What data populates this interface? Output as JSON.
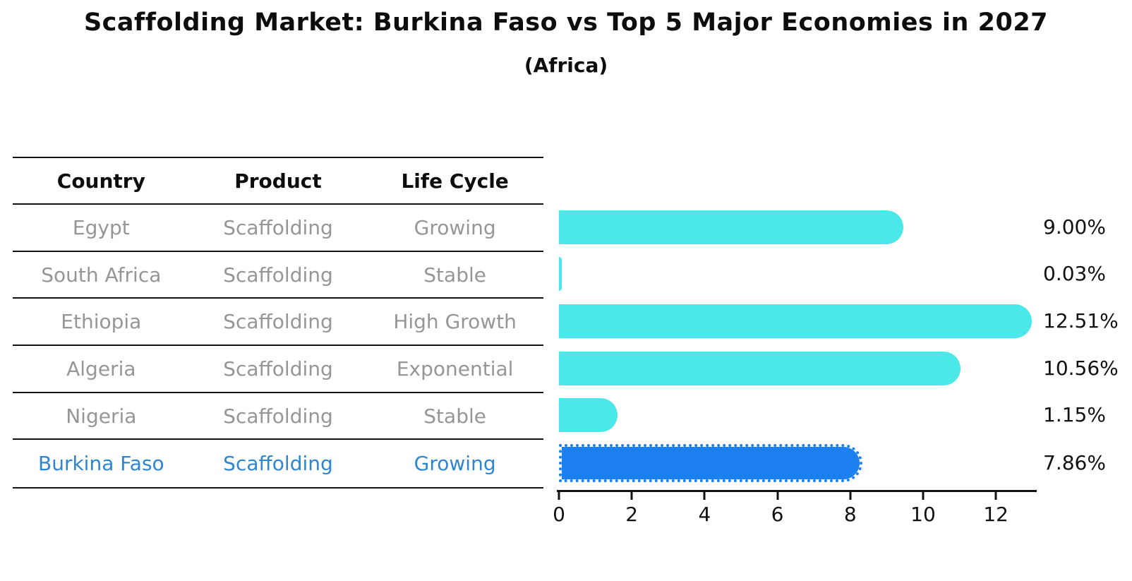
{
  "title": "Scaffolding Market: Burkina Faso vs Top 5 Major Economies in 2027",
  "subtitle": "(Africa)",
  "table": {
    "headers": [
      "Country",
      "Product",
      "Life Cycle"
    ],
    "rows": [
      {
        "country": "Egypt",
        "product": "Scaffolding",
        "life_cycle": "Growing",
        "highlighted": false
      },
      {
        "country": "South Africa",
        "product": "Scaffolding",
        "life_cycle": "Stable",
        "highlighted": false
      },
      {
        "country": "Ethiopia",
        "product": "Scaffolding",
        "life_cycle": "High Growth",
        "highlighted": false
      },
      {
        "country": "Algeria",
        "product": "Scaffolding",
        "life_cycle": "Exponential",
        "highlighted": false
      },
      {
        "country": "Nigeria",
        "product": "Scaffolding",
        "life_cycle": "Stable",
        "highlighted": false
      },
      {
        "country": "Burkina Faso",
        "product": "Scaffolding",
        "life_cycle": "Growing",
        "highlighted": true
      }
    ]
  },
  "chart_data": {
    "type": "bar",
    "orientation": "horizontal",
    "title": "Scaffolding Market: Burkina Faso vs Top 5 Major Economies in 2027",
    "subtitle": "(Africa)",
    "categories": [
      "Egypt",
      "South Africa",
      "Ethiopia",
      "Algeria",
      "Nigeria",
      "Burkina Faso"
    ],
    "values": [
      9.0,
      0.03,
      12.51,
      10.56,
      1.15,
      7.86
    ],
    "value_labels": [
      "9.00%",
      "0.03%",
      "12.51%",
      "10.56%",
      "1.15%",
      "7.86%"
    ],
    "x_ticks": [
      "0",
      "2",
      "4",
      "6",
      "8",
      "10",
      "12"
    ],
    "xlim": [
      0,
      13.1
    ],
    "grid": false,
    "legend": "none",
    "bar_color": "#4BE8E9",
    "highlight_bar_color": "#1C80F0",
    "highlight_index": 5,
    "highlight_style": "dotted-outline"
  },
  "colors": {
    "background": "#FFFFFF",
    "bar_cyan": "#4BE8E9",
    "bar_blue": "#1C80F0",
    "highlight_text": "#2E86D1",
    "table_text_gray": "#969696",
    "text_black": "#0d0d0d"
  }
}
